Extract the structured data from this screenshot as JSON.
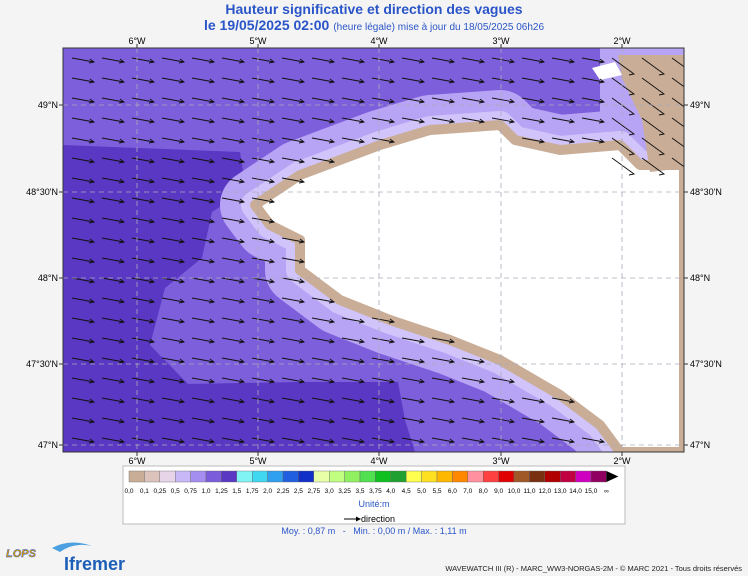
{
  "header": {
    "title": "Hauteur significative et direction des vagues",
    "date": "le 19/05/2025 02:00",
    "update_note": "(heure légale) mise à jour du 18/05/2025 06h26"
  },
  "map": {
    "lon_labels": [
      "6°W",
      "5°W",
      "4°W",
      "3°W",
      "2°W"
    ],
    "lat_labels": [
      "49°N",
      "48°30'N",
      "48°N",
      "47°30'N",
      "47°N"
    ]
  },
  "legend": {
    "labels": [
      "0,0",
      "0,1",
      "0,25",
      "0,5",
      "0,75",
      "1,0",
      "1,25",
      "1,5",
      "1,75",
      "2,0",
      "2,25",
      "2,5",
      "2,75",
      "3,0",
      "3,25",
      "3,5",
      "3,75",
      "4,0",
      "4,5",
      "5,0",
      "5,5",
      "6,0",
      "7,0",
      "8,0",
      "9,0",
      "10,0",
      "11,0",
      "12,0",
      "13,0",
      "14,0",
      "15,0",
      "∞"
    ],
    "colors": [
      "#c9ad97",
      "#dcc4bc",
      "#e7d4e8",
      "#c8b8f8",
      "#a48ef0",
      "#7b5ddc",
      "#5a38c4",
      "#80f4f4",
      "#40d8f0",
      "#2fa0f0",
      "#2060e0",
      "#1030c8",
      "#e8ffa8",
      "#c0ff80",
      "#90f060",
      "#50e050",
      "#10c020",
      "#20a030",
      "#ffff50",
      "#ffe020",
      "#ffb800",
      "#ff8800",
      "#ff90a0",
      "#ff4040",
      "#e00000",
      "#a05828",
      "#783010",
      "#b00000",
      "#c00040",
      "#d000c0",
      "#900060"
    ],
    "unit": "Unité:m",
    "direction_label": "direction"
  },
  "stats": "Moy. : 0,87 m   -   Min. : 0,00 m / Max. : 1,11 m",
  "logos": {
    "lops": "LOPS",
    "ifremer": "Ifremer"
  },
  "footer": "WAVEWATCH III (R) - MARC_WW3-NORGAS-2M - © MARC 2021 - Tous droits réservés"
}
